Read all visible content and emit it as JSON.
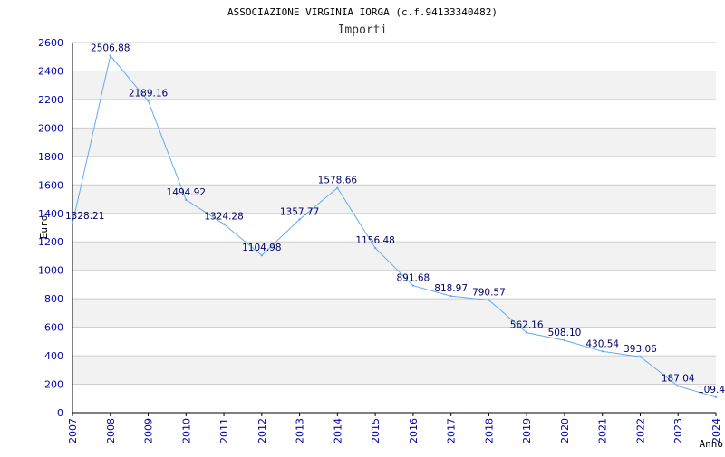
{
  "chart_data": {
    "type": "line",
    "title": "ASSOCIAZIONE VIRGINIA IORGA (c.f.94133340482)",
    "subtitle": "Importi",
    "xlabel": "Anno",
    "ylabel": "Euro",
    "x": [
      "2007",
      "2008",
      "2009",
      "2010",
      "2011",
      "2012",
      "2013",
      "2014",
      "2015",
      "2016",
      "2017",
      "2018",
      "2019",
      "2020",
      "2021",
      "2022",
      "2023",
      "2024"
    ],
    "series": [
      {
        "values": [
          1328.21,
          2506.88,
          2189.16,
          1494.92,
          1324.28,
          1104.98,
          1357.77,
          1578.66,
          1156.48,
          891.68,
          818.97,
          790.57,
          562.16,
          508.1,
          430.54,
          393.06,
          187.04,
          109.4
        ],
        "labels": [
          "1328.21",
          "2506.88",
          "2189.16",
          "1494.92",
          "1324.28",
          "1104.98",
          "1357.77",
          "1578.66",
          "1156.48",
          "891.68",
          "818.97",
          "790.57",
          "562.16",
          "508.10",
          "430.54",
          "393.06",
          "187.04",
          "109.4"
        ]
      }
    ],
    "ylim": [
      0,
      2600
    ],
    "yticks": [
      "0",
      "200",
      "400",
      "600",
      "800",
      "1000",
      "1200",
      "1400",
      "1600",
      "1800",
      "2000",
      "2200",
      "2400",
      "2600"
    ],
    "grid": true,
    "colors": {
      "line": "#66aaee",
      "band": "#f2f2f2",
      "grid": "#cccccc",
      "tick": "#0000aa",
      "label": "#000066"
    }
  }
}
